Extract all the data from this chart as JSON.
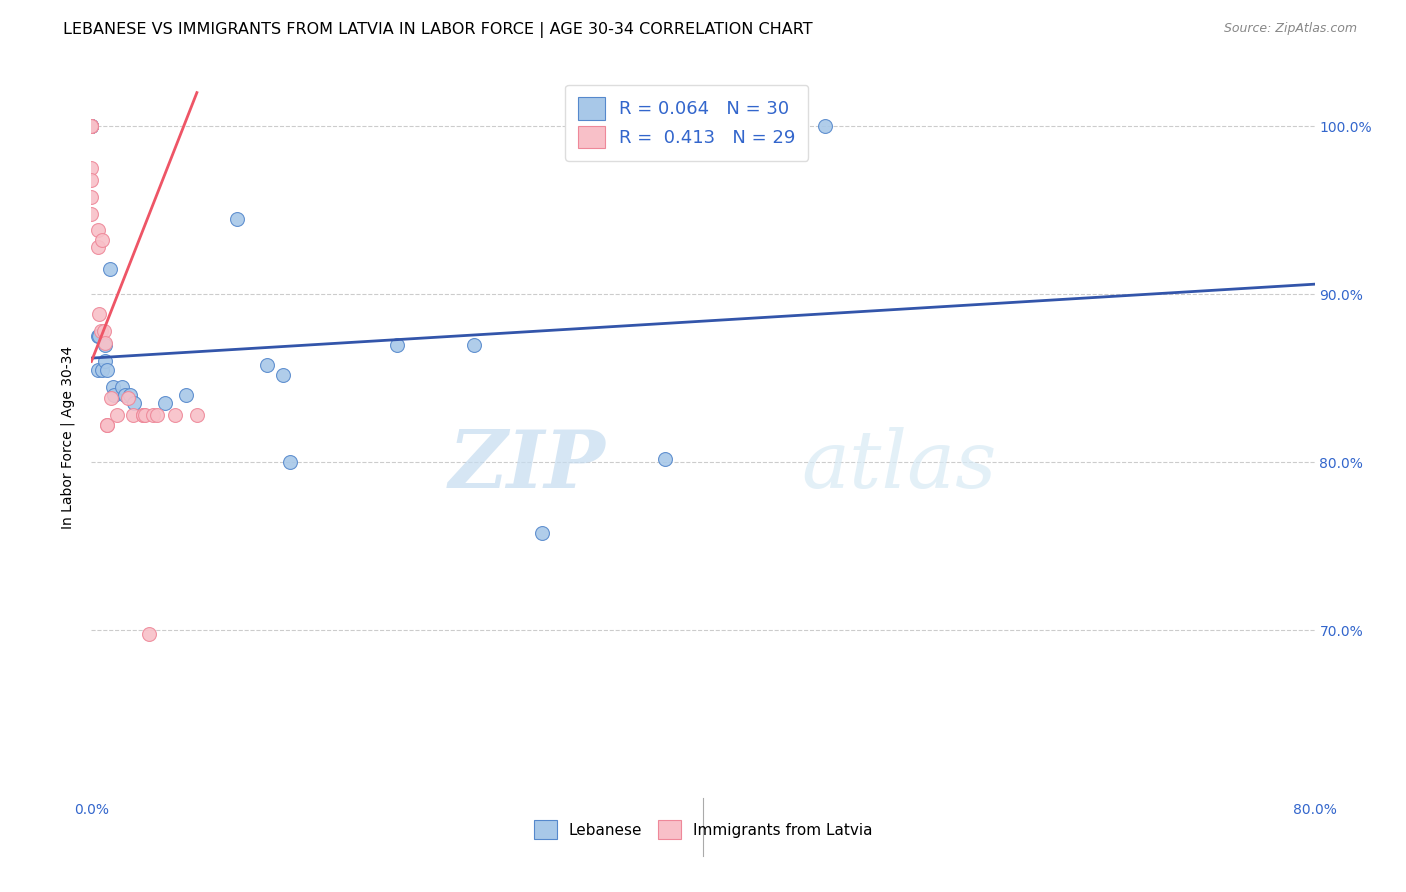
{
  "title": "LEBANESE VS IMMIGRANTS FROM LATVIA IN LABOR FORCE | AGE 30-34 CORRELATION CHART",
  "source": "Source: ZipAtlas.com",
  "ylabel": "In Labor Force | Age 30-34",
  "xlim": [
    0.0,
    0.8
  ],
  "ylim": [
    0.6,
    1.03
  ],
  "xticks": [
    0.0,
    0.1,
    0.2,
    0.3,
    0.4,
    0.5,
    0.6,
    0.7,
    0.8
  ],
  "xticklabels": [
    "0.0%",
    "",
    "",
    "",
    "",
    "",
    "",
    "",
    "80.0%"
  ],
  "yticks_right": [
    0.7,
    0.8,
    0.9,
    1.0
  ],
  "yticklabels_right": [
    "70.0%",
    "80.0%",
    "90.0%",
    "100.0%"
  ],
  "grid_yticks": [
    0.7,
    0.8,
    0.9,
    1.0
  ],
  "legend_r_blue": "0.064",
  "legend_n_blue": "30",
  "legend_r_pink": "0.413",
  "legend_n_pink": "29",
  "blue_fill": "#A8C8E8",
  "pink_fill": "#F8C0C8",
  "blue_edge": "#5588CC",
  "pink_edge": "#EE8899",
  "blue_line_color": "#3355AA",
  "pink_line_color": "#EE5566",
  "legend_label_blue": "Lebanese",
  "legend_label_pink": "Immigrants from Latvia",
  "watermark_zip": "ZIP",
  "watermark_atlas": "atlas",
  "blue_scatter_x": [
    0.0,
    0.0,
    0.0,
    0.0,
    0.0,
    0.004,
    0.004,
    0.005,
    0.007,
    0.009,
    0.009,
    0.01,
    0.012,
    0.014,
    0.015,
    0.02,
    0.022,
    0.025,
    0.028,
    0.048,
    0.062,
    0.095,
    0.115,
    0.125,
    0.13,
    0.2,
    0.25,
    0.295,
    0.375,
    0.48
  ],
  "blue_scatter_y": [
    1.0,
    1.0,
    1.0,
    1.0,
    1.0,
    0.875,
    0.855,
    0.875,
    0.855,
    0.87,
    0.86,
    0.855,
    0.915,
    0.845,
    0.84,
    0.845,
    0.84,
    0.84,
    0.835,
    0.835,
    0.84,
    0.945,
    0.858,
    0.852,
    0.8,
    0.87,
    0.87,
    0.758,
    0.802,
    1.0
  ],
  "pink_scatter_x": [
    0.0,
    0.0,
    0.0,
    0.0,
    0.0,
    0.0,
    0.0,
    0.0,
    0.004,
    0.004,
    0.005,
    0.006,
    0.007,
    0.008,
    0.009,
    0.01,
    0.01,
    0.013,
    0.017,
    0.024,
    0.027,
    0.034,
    0.034,
    0.035,
    0.038,
    0.04,
    0.043,
    0.055,
    0.069
  ],
  "pink_scatter_y": [
    1.0,
    1.0,
    1.0,
    1.0,
    0.975,
    0.968,
    0.958,
    0.948,
    0.938,
    0.928,
    0.888,
    0.878,
    0.932,
    0.878,
    0.871,
    0.822,
    0.822,
    0.838,
    0.828,
    0.838,
    0.828,
    0.828,
    0.828,
    0.828,
    0.698,
    0.828,
    0.828,
    0.828,
    0.828
  ],
  "blue_line_x": [
    0.0,
    0.8
  ],
  "blue_line_y": [
    0.862,
    0.906
  ],
  "pink_line_x": [
    0.0,
    0.069
  ],
  "pink_line_y": [
    0.86,
    1.02
  ],
  "marker_size": 100,
  "title_fontsize": 11.5,
  "axis_fontsize": 10,
  "tick_fontsize": 10,
  "legend_fontsize": 13
}
